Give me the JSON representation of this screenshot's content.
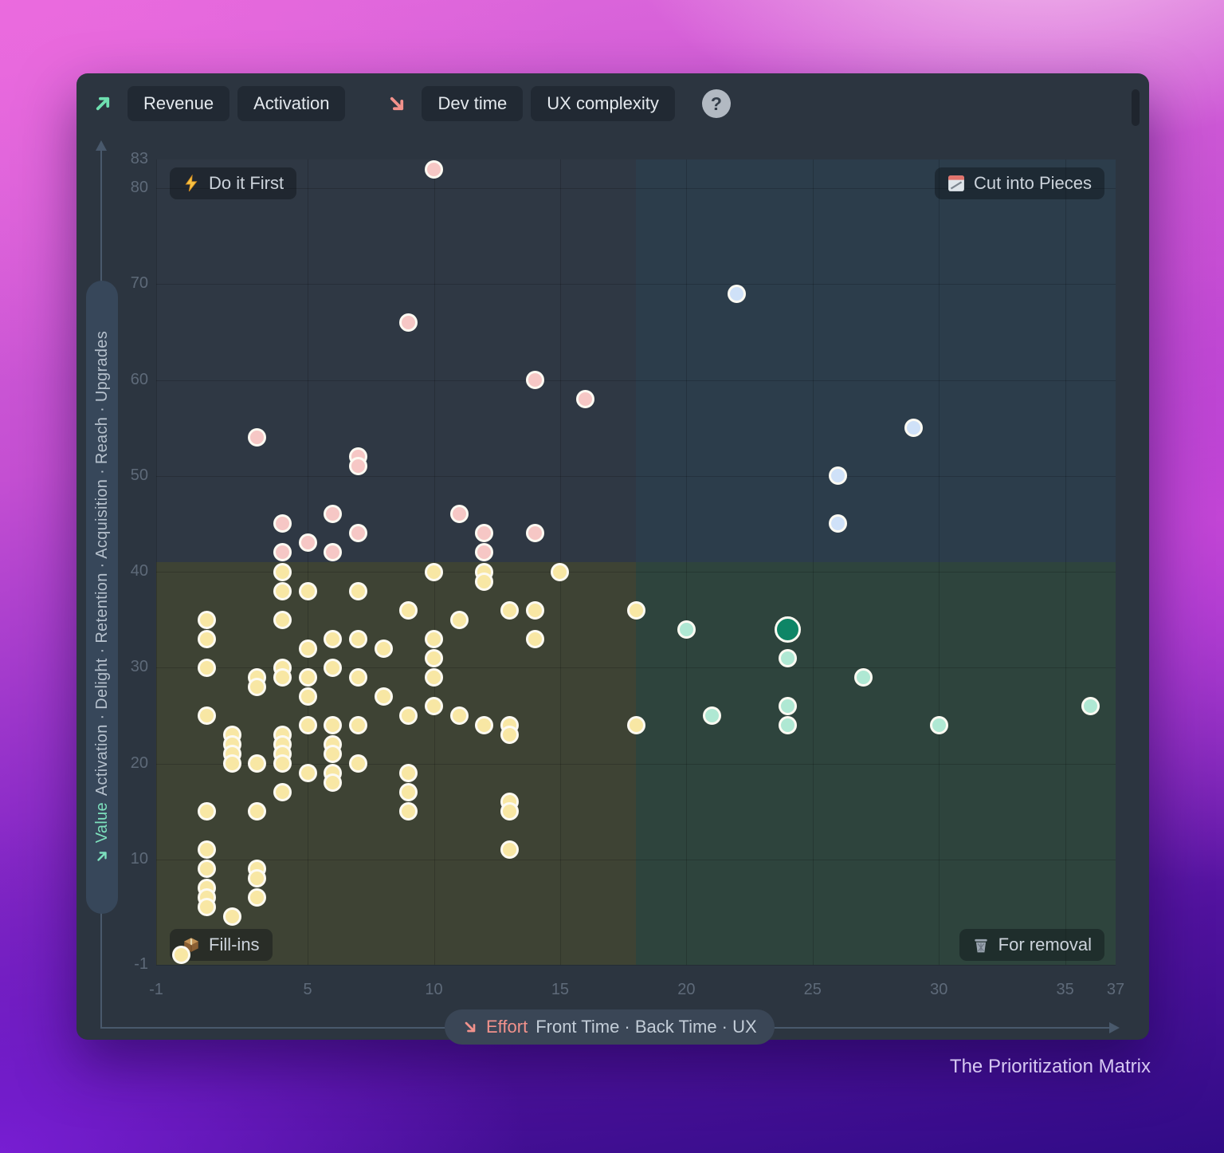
{
  "app": {
    "toolbar": {
      "value_group": {
        "icon": "up-right-arrow",
        "buttons": [
          "Revenue",
          "Activation"
        ]
      },
      "effort_group": {
        "icon": "down-right-arrow",
        "buttons": [
          "Dev time",
          "UX complexity"
        ]
      },
      "help": "?"
    },
    "quadrant_labels": {
      "top_left": "Do it First",
      "top_right": "Cut into Pieces",
      "bottom_left": "Fill-ins",
      "bottom_right": "For removal"
    },
    "quadrant_icons": {
      "top_left": "lightning-icon",
      "top_right": "memo-icon",
      "bottom_left": "package-icon",
      "bottom_right": "trash-icon"
    },
    "y_axis": {
      "arrow": "↗",
      "title": "Value",
      "subtitle": "Activation · Delight · Retention · Acquisition · Reach · Upgrades"
    },
    "x_axis": {
      "arrow": "↘",
      "title": "Effort",
      "subtitle": "Front Time · Back Time · UX"
    },
    "caption": "The Prioritization Matrix"
  },
  "colors": {
    "window_bg": "#2c3540",
    "quadrant_top_left": "#2f3844",
    "quadrant_top_right": "#2c3d4b",
    "quadrant_bottom_left": "#3e4334",
    "quadrant_bottom_right": "#2e443d",
    "accent_value": "#6fdcb2",
    "accent_effort": "#f2928c",
    "tick_label": "#5e6a79",
    "dot_border": "#fcfaf2"
  },
  "chart_data": {
    "type": "scatter",
    "title": "The Prioritization Matrix",
    "xlabel": "Effort · Front Time · Back Time · UX",
    "ylabel": "Value · Activation · Delight · Retention · Acquisition · Reach · Upgrades",
    "xlim": [
      -1,
      37
    ],
    "ylim": [
      -1,
      83
    ],
    "x_ticks": [
      -1,
      5,
      10,
      15,
      20,
      25,
      30,
      35,
      37
    ],
    "y_ticks": [
      83,
      80,
      70,
      60,
      50,
      40,
      30,
      20,
      10,
      -1
    ],
    "grid_x": [
      -1,
      5,
      10,
      15,
      20,
      25,
      30,
      35
    ],
    "grid_y": [
      80,
      70,
      60,
      50,
      40,
      30,
      20,
      10,
      -1
    ],
    "grid_on": true,
    "legend": "none",
    "quadrant_split": {
      "x": 18,
      "y": 41
    },
    "series": [
      {
        "name": "Do it First",
        "color": "#f6c7c5",
        "points": [
          [
            10,
            82
          ],
          [
            9,
            66
          ],
          [
            14,
            60
          ],
          [
            16,
            58
          ],
          [
            3,
            54
          ],
          [
            7,
            52
          ],
          [
            7,
            51
          ],
          [
            6,
            46
          ],
          [
            11,
            46
          ],
          [
            4,
            45
          ],
          [
            7,
            44
          ],
          [
            12,
            44
          ],
          [
            14,
            44
          ],
          [
            5,
            43
          ],
          [
            4,
            42
          ],
          [
            6,
            42
          ],
          [
            12,
            42
          ]
        ]
      },
      {
        "name": "Cut into Pieces",
        "color": "#cfe1f8",
        "points": [
          [
            22,
            69
          ],
          [
            29,
            55
          ],
          [
            26,
            50
          ],
          [
            26,
            45
          ]
        ]
      },
      {
        "name": "Fill-ins",
        "color": "#f8e7a4",
        "points": [
          [
            4,
            40
          ],
          [
            10,
            40
          ],
          [
            12,
            40
          ],
          [
            15,
            40
          ],
          [
            12,
            39
          ],
          [
            4,
            38
          ],
          [
            5,
            38
          ],
          [
            7,
            38
          ],
          [
            9,
            36
          ],
          [
            13,
            36
          ],
          [
            14,
            36
          ],
          [
            18,
            36
          ],
          [
            1,
            35
          ],
          [
            4,
            35
          ],
          [
            11,
            35
          ],
          [
            1,
            33
          ],
          [
            6,
            33
          ],
          [
            7,
            33
          ],
          [
            10,
            33
          ],
          [
            14,
            33
          ],
          [
            5,
            32
          ],
          [
            8,
            32
          ],
          [
            10,
            31
          ],
          [
            1,
            30
          ],
          [
            4,
            30
          ],
          [
            6,
            30
          ],
          [
            3,
            29
          ],
          [
            4,
            29
          ],
          [
            5,
            29
          ],
          [
            7,
            29
          ],
          [
            10,
            29
          ],
          [
            3,
            28
          ],
          [
            5,
            27
          ],
          [
            8,
            27
          ],
          [
            10,
            26
          ],
          [
            1,
            25
          ],
          [
            9,
            25
          ],
          [
            11,
            25
          ],
          [
            5,
            24
          ],
          [
            6,
            24
          ],
          [
            7,
            24
          ],
          [
            12,
            24
          ],
          [
            13,
            24
          ],
          [
            18,
            24
          ],
          [
            2,
            23
          ],
          [
            4,
            23
          ],
          [
            13,
            23
          ],
          [
            2,
            22
          ],
          [
            4,
            22
          ],
          [
            6,
            22
          ],
          [
            2,
            21
          ],
          [
            4,
            21
          ],
          [
            6,
            21
          ],
          [
            2,
            20
          ],
          [
            3,
            20
          ],
          [
            4,
            20
          ],
          [
            7,
            20
          ],
          [
            5,
            19
          ],
          [
            6,
            19
          ],
          [
            9,
            19
          ],
          [
            6,
            18
          ],
          [
            4,
            17
          ],
          [
            9,
            17
          ],
          [
            13,
            16
          ],
          [
            1,
            15
          ],
          [
            3,
            15
          ],
          [
            9,
            15
          ],
          [
            13,
            15
          ],
          [
            1,
            11
          ],
          [
            13,
            11
          ],
          [
            1,
            9
          ],
          [
            3,
            9
          ],
          [
            3,
            8
          ],
          [
            1,
            7
          ],
          [
            1,
            6
          ],
          [
            3,
            6
          ],
          [
            1,
            5
          ],
          [
            2,
            4
          ],
          [
            0,
            0
          ]
        ]
      },
      {
        "name": "For removal",
        "color": "#afe8d3",
        "points": [
          [
            20,
            34
          ],
          [
            24,
            31
          ],
          [
            27,
            29
          ],
          [
            24,
            26
          ],
          [
            21,
            25
          ],
          [
            24,
            24
          ],
          [
            30,
            24
          ],
          [
            36,
            26
          ]
        ]
      },
      {
        "name": "Selected item",
        "color": "#0e8566",
        "radius": 16.5,
        "points": [
          [
            24,
            34
          ]
        ]
      }
    ]
  }
}
